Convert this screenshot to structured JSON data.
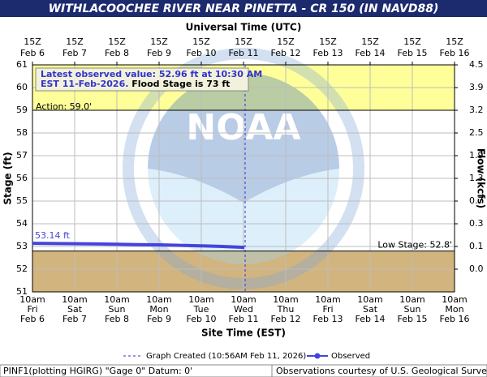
{
  "chart_data": {
    "type": "line",
    "title": "WITHLACOOCHEE RIVER NEAR PINETTA - CR 150 (IN NAVD88)",
    "x2_label": "Universal Time (UTC)",
    "x_label": "Site Time (EST)",
    "y_label": "Stage (ft)",
    "y2_label": "Flow (kcfs)",
    "watermark": "NOAA",
    "xlim": [
      "2026-02-06T10:00-05:00",
      "2026-02-16T10:00-05:00"
    ],
    "ylim": [
      51,
      61
    ],
    "yticks": [
      51,
      52,
      53,
      54,
      55,
      56,
      57,
      58,
      59,
      60,
      61
    ],
    "y2ticks": [
      {
        "value": 0,
        "label": "0.0"
      },
      0.1,
      0.3,
      0.7,
      1.3,
      1.9,
      2.5,
      3.2,
      3.9,
      4.5
    ],
    "grid": true,
    "xticks": [
      {
        "value": "2026-02-06T10:00-05:00",
        "label": [
          "10am",
          "Fri",
          "Feb 6"
        ]
      },
      {
        "value": "2026-02-07T10:00-05:00",
        "label": [
          "10am",
          "Sat",
          "Feb 7"
        ]
      },
      {
        "value": "2026-02-08T10:00-05:00",
        "label": [
          "10am",
          "Sun",
          "Feb 8"
        ]
      },
      {
        "value": "2026-02-09T10:00-05:00",
        "label": [
          "10am",
          "Mon",
          "Feb 9"
        ]
      },
      {
        "value": "2026-02-10T10:00-05:00",
        "label": [
          "10am",
          "Tue",
          "Feb 10"
        ]
      },
      {
        "value": "2026-02-11T10:00-05:00",
        "label": [
          "10am",
          "Wed",
          "Feb 11"
        ]
      },
      {
        "value": "2026-02-12T10:00-05:00",
        "label": [
          "10am",
          "Thu",
          "Feb 12"
        ]
      },
      {
        "value": "2026-02-13T10:00-05:00",
        "label": [
          "10am",
          "Fri",
          "Feb 13"
        ]
      },
      {
        "value": "2026-02-14T10:00-05:00",
        "label": [
          "10am",
          "Sat",
          "Feb 14"
        ]
      },
      {
        "value": "2026-02-15T10:00-05:00",
        "label": [
          "10am",
          "Sun",
          "Feb 15"
        ]
      },
      {
        "value": "2026-02-16T10:00-05:00",
        "label": [
          "10am",
          "Mon",
          "Feb 16"
        ]
      }
    ],
    "x2ticks": [
      {
        "value": "2026-02-06T15:00Z",
        "label": [
          "15Z",
          "Feb 6"
        ]
      },
      {
        "value": "2026-02-07T15:00Z",
        "label": [
          "15Z",
          "Feb 7"
        ]
      },
      {
        "value": "2026-02-08T15:00Z",
        "label": [
          "15Z",
          "Feb 8"
        ]
      },
      {
        "value": "2026-02-09T15:00Z",
        "label": [
          "15Z",
          "Feb 9"
        ]
      },
      {
        "value": "2026-02-10T15:00Z",
        "label": [
          "15Z",
          "Feb 10"
        ]
      },
      {
        "value": "2026-02-11T15:00Z",
        "label": [
          "15Z",
          "Feb 11"
        ]
      },
      {
        "value": "2026-02-12T15:00Z",
        "label": [
          "15Z",
          "Feb 12"
        ]
      },
      {
        "value": "2026-02-13T15:00Z",
        "label": [
          "15Z",
          "Feb 13"
        ]
      },
      {
        "value": "2026-02-14T15:00Z",
        "label": [
          "15Z",
          "Feb 14"
        ]
      },
      {
        "value": "2026-02-15T15:00Z",
        "label": [
          "15Z",
          "Feb 15"
        ]
      },
      {
        "value": "2026-02-16T15:00Z",
        "label": [
          "15Z",
          "Feb 16"
        ]
      }
    ],
    "thresholds": [
      {
        "label": "Action: 59.0'",
        "value": 59,
        "color": "#ffff99",
        "side": "above"
      },
      {
        "label": "Low Stage: 52.8'",
        "value": 52.8,
        "color": "#d2b47f",
        "side": "below"
      }
    ],
    "annotation": {
      "text": "Latest observed value: 52.96 ft at 10:30 AM EST 11-Feb-2026.",
      "text2": "Flood Stage is 73 ft"
    },
    "created": {
      "value": "2026-02-11T10:56-05:00",
      "label": "Graph Created (10:56AM Feb 11, 2026)"
    },
    "series": [
      {
        "name": "Observed",
        "color": "#4444dd",
        "x": [
          "2026-02-06T10:00-05:00",
          "2026-02-06T22:00-05:00",
          "2026-02-07T10:00-05:00",
          "2026-02-07T22:00-05:00",
          "2026-02-08T10:00-05:00",
          "2026-02-08T22:00-05:00",
          "2026-02-09T10:00-05:00",
          "2026-02-09T22:00-05:00",
          "2026-02-10T10:00-05:00",
          "2026-02-10T22:00-05:00",
          "2026-02-11T10:30-05:00"
        ],
        "values": [
          53.14,
          53.13,
          53.12,
          53.11,
          53.1,
          53.08,
          53.07,
          53.05,
          53.03,
          53,
          52.96
        ],
        "value_labels": [
          "53.14 ft",
          null,
          null,
          null,
          null,
          null,
          null,
          null,
          null,
          null,
          null
        ]
      }
    ],
    "footer_left": "PINF1(plotting HGIRG) \"Gage 0\" Datum: 0'",
    "footer_right": "Observations courtesy of U.S. Geological Survey"
  }
}
